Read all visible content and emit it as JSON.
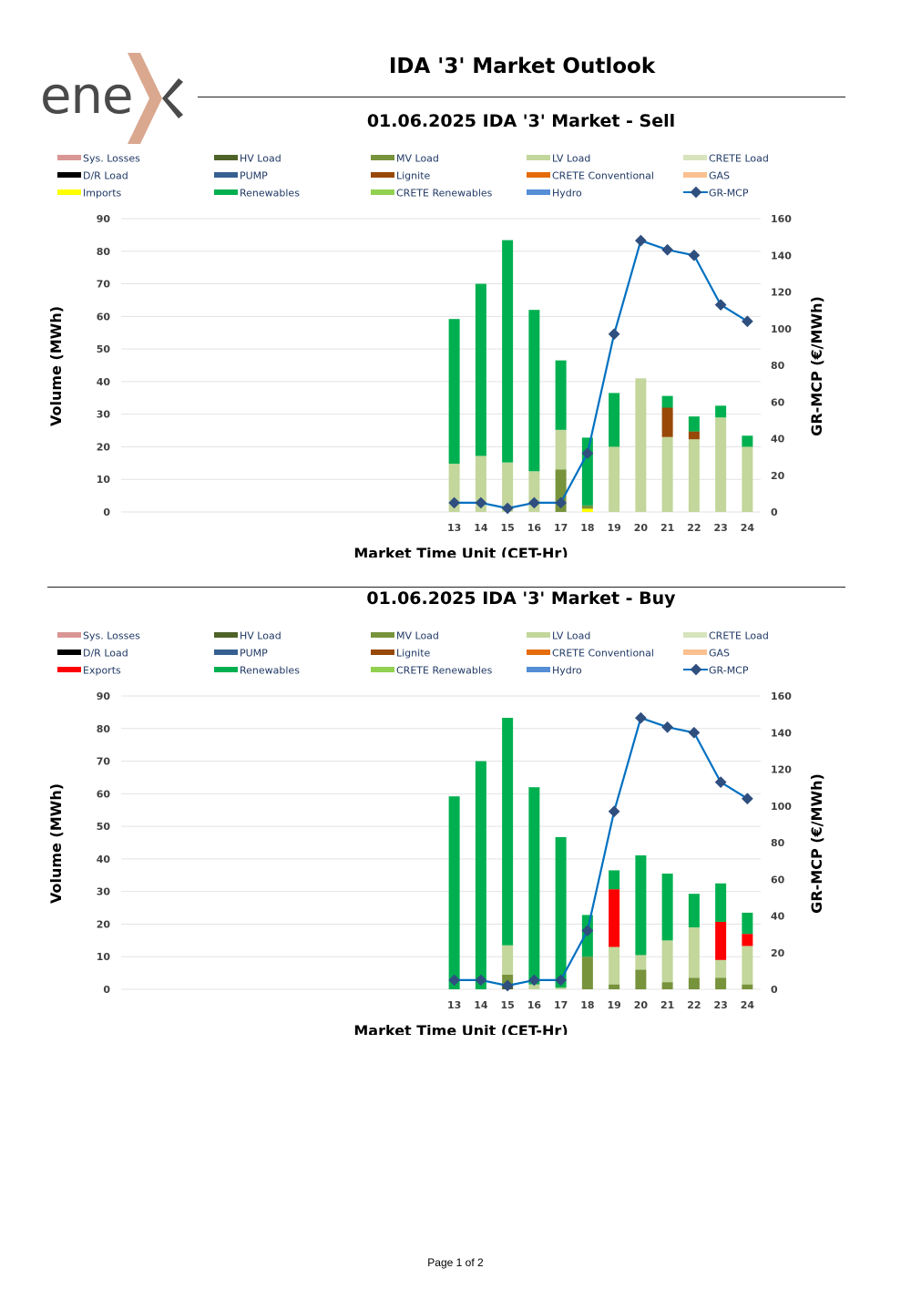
{
  "page": {
    "title": "IDA '3' Market Outlook",
    "logo_text": "enex",
    "page_number": "Page 1 of 2"
  },
  "colors": {
    "sys_losses": "#d99694",
    "hv_load": "#4f6228",
    "mv_load": "#77933c",
    "lv_load": "#c3d69b",
    "crete_load": "#d7e4bd",
    "dr_load": "#000000",
    "pump": "#376092",
    "lignite": "#984807",
    "crete_conventional": "#e46c0a",
    "gas": "#fac090",
    "imports": "#ffff00",
    "exports": "#ff0000",
    "renewables": "#00b050",
    "crete_renewables": "#92d050",
    "hydro": "#558ed5",
    "gr_mcp": "#0070c0",
    "gr_mcp_marker": "#2f4f7f",
    "logo_gray": "#4a4a4a",
    "logo_x": "#d9a88f"
  },
  "chart_data": [
    {
      "type": "bar",
      "title": "01.06.2025  IDA '3' Market - Sell",
      "xlabel": "Market Time Unit (CET-Hr)",
      "ylabel": "Volume (MWh)",
      "y2label": "GR-MCP (€/MWh)",
      "ylim": [
        0,
        90
      ],
      "yticks": [
        "0",
        "10",
        "20",
        "30",
        "40",
        "50",
        "60",
        "70",
        "80",
        "90"
      ],
      "y2lim": [
        0,
        160
      ],
      "y2ticks": [
        "0",
        "20",
        "40",
        "60",
        "80",
        "100",
        "120",
        "140",
        "160"
      ],
      "slots": 24,
      "categories": [
        "13",
        "14",
        "15",
        "16",
        "17",
        "18",
        "19",
        "20",
        "21",
        "22",
        "23",
        "24"
      ],
      "legend": [
        {
          "label": "Sys. Losses",
          "key": "sys_losses"
        },
        {
          "label": "HV Load",
          "key": "hv_load"
        },
        {
          "label": "MV Load",
          "key": "mv_load"
        },
        {
          "label": "LV Load",
          "key": "lv_load"
        },
        {
          "label": "CRETE Load",
          "key": "crete_load"
        },
        {
          "label": "D/R Load",
          "key": "dr_load"
        },
        {
          "label": "PUMP",
          "key": "pump"
        },
        {
          "label": "Lignite",
          "key": "lignite"
        },
        {
          "label": "CRETE Conventional",
          "key": "crete_conventional"
        },
        {
          "label": "GAS",
          "key": "gas"
        },
        {
          "label": "Imports",
          "key": "imports"
        },
        {
          "label": "Renewables",
          "key": "renewables"
        },
        {
          "label": "CRETE Renewables",
          "key": "crete_renewables"
        },
        {
          "label": "Hydro",
          "key": "hydro"
        },
        {
          "label": "GR-MCP",
          "key": "gr_mcp",
          "line": true
        }
      ],
      "series": [
        {
          "name": "Imports",
          "key": "imports",
          "values": [
            0,
            0,
            0,
            0,
            0,
            1,
            0,
            0,
            0,
            0,
            0,
            0
          ]
        },
        {
          "name": "MV Load",
          "key": "mv_load",
          "values": [
            0,
            0,
            0,
            0,
            13,
            1,
            0,
            0,
            0,
            0,
            0,
            0
          ]
        },
        {
          "name": "LV Load",
          "key": "lv_load",
          "values": [
            14.8,
            17.2,
            15.2,
            12.5,
            12.2,
            0,
            20,
            41,
            23,
            22.3,
            29,
            20
          ]
        },
        {
          "name": "Lignite",
          "key": "lignite",
          "values": [
            0,
            0,
            0,
            0,
            0,
            0,
            0,
            0,
            9,
            2.4,
            0,
            0
          ]
        },
        {
          "name": "Renewables",
          "key": "renewables",
          "values": [
            44.4,
            52.8,
            68.2,
            49.5,
            21.3,
            20.8,
            16.5,
            0,
            3.6,
            4.6,
            3.6,
            3.4
          ]
        }
      ],
      "line": {
        "name": "GR-MCP",
        "values": [
          5,
          5,
          2,
          5,
          5,
          32,
          97,
          148,
          143,
          140,
          113,
          104
        ]
      }
    },
    {
      "type": "bar",
      "title": "01.06.2025  IDA '3' Market - Buy",
      "xlabel": "Market Time Unit (CET-Hr)",
      "ylabel": "Volume (MWh)",
      "y2label": "GR-MCP (€/MWh)",
      "ylim": [
        0,
        90
      ],
      "yticks": [
        "0",
        "10",
        "20",
        "30",
        "40",
        "50",
        "60",
        "70",
        "80",
        "90"
      ],
      "y2lim": [
        0,
        160
      ],
      "y2ticks": [
        "0",
        "20",
        "40",
        "60",
        "80",
        "100",
        "120",
        "140",
        "160"
      ],
      "slots": 24,
      "categories": [
        "13",
        "14",
        "15",
        "16",
        "17",
        "18",
        "19",
        "20",
        "21",
        "22",
        "23",
        "24"
      ],
      "legend": [
        {
          "label": "Sys. Losses",
          "key": "sys_losses"
        },
        {
          "label": "HV Load",
          "key": "hv_load"
        },
        {
          "label": "MV Load",
          "key": "mv_load"
        },
        {
          "label": "LV Load",
          "key": "lv_load"
        },
        {
          "label": "CRETE Load",
          "key": "crete_load"
        },
        {
          "label": "D/R Load",
          "key": "dr_load"
        },
        {
          "label": "PUMP",
          "key": "pump"
        },
        {
          "label": "Lignite",
          "key": "lignite"
        },
        {
          "label": "CRETE Conventional",
          "key": "crete_conventional"
        },
        {
          "label": "GAS",
          "key": "gas"
        },
        {
          "label": "Exports",
          "key": "exports"
        },
        {
          "label": "Renewables",
          "key": "renewables"
        },
        {
          "label": "CRETE Renewables",
          "key": "crete_renewables"
        },
        {
          "label": "Hydro",
          "key": "hydro"
        },
        {
          "label": "GR-MCP",
          "key": "gr_mcp",
          "line": true
        }
      ],
      "series": [
        {
          "name": "HV Load",
          "key": "hv_load",
          "values": [
            0,
            0,
            1,
            0,
            0,
            0,
            0,
            0,
            0,
            0,
            0,
            0
          ]
        },
        {
          "name": "MV Load",
          "key": "mv_load",
          "values": [
            0,
            0,
            3.5,
            0,
            0,
            10,
            1.5,
            6,
            2.2,
            3.5,
            3.5,
            1.5
          ]
        },
        {
          "name": "LV Load",
          "key": "lv_load",
          "values": [
            0,
            0,
            9,
            1.5,
            0.5,
            0,
            11.5,
            4.5,
            12.8,
            15.5,
            5.5,
            11.8
          ]
        },
        {
          "name": "Exports",
          "key": "exports",
          "values": [
            0,
            0,
            0,
            0,
            0,
            0,
            17.7,
            0,
            0,
            0,
            11.7,
            3.7
          ]
        },
        {
          "name": "Renewables",
          "key": "renewables",
          "values": [
            59.2,
            70,
            69.8,
            60.5,
            46.2,
            12.8,
            5.8,
            30.6,
            20.5,
            10.3,
            11.8,
            6.5
          ]
        }
      ],
      "line": {
        "name": "GR-MCP",
        "values": [
          5,
          5,
          2,
          5,
          5,
          32,
          97,
          148,
          143,
          140,
          113,
          104
        ]
      }
    }
  ]
}
